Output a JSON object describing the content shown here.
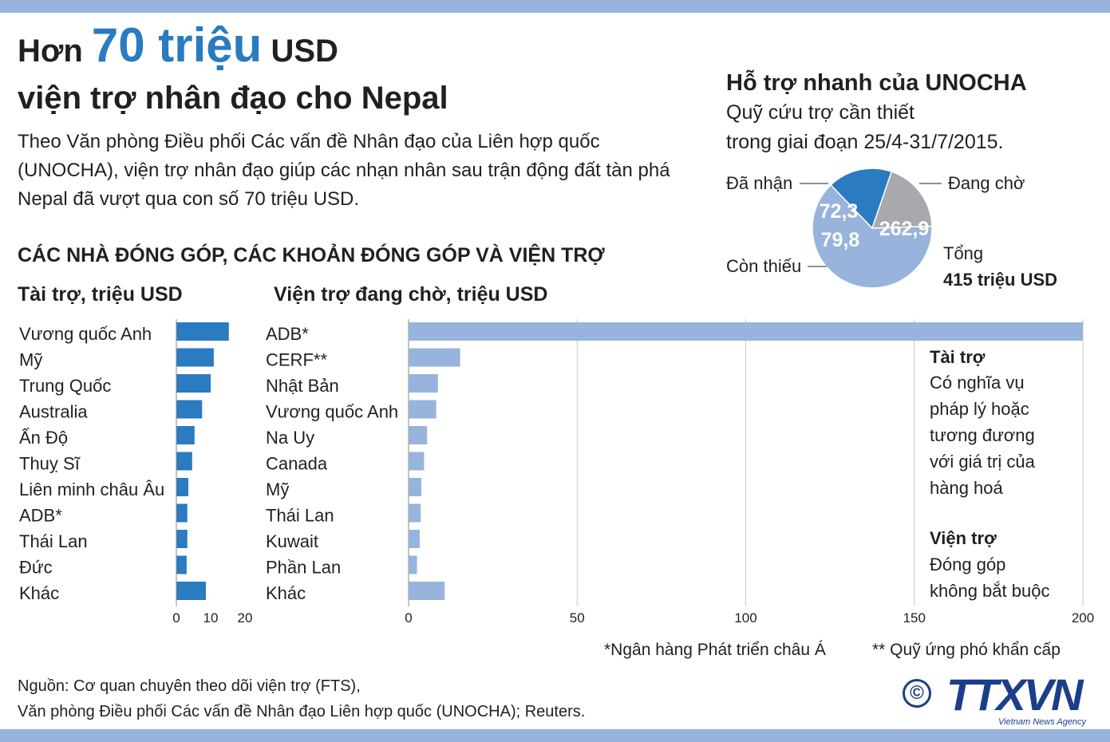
{
  "title": {
    "prefix": "Hơn",
    "highlight": "70 triệu",
    "suffix": "USD",
    "line2": "viện trợ nhân đạo cho Nepal"
  },
  "lede": "Theo Văn phòng Điều phối Các vấn đề Nhân đạo của Liên hợp quốc (UNOCHA),  viện trợ nhân đạo giúp các nhạn nhân sau trận động đất tàn phá Nepal đã vượt qua con số 70 triệu USD.",
  "section_title": "CÁC NHÀ ĐÓNG GÓP, CÁC KHOẢN ĐÓNG GÓP VÀ VIỆN TRỢ",
  "aside": {
    "funding_title": "Tài trợ",
    "funding_desc": [
      "Có nghĩa vụ",
      "pháp lý hoặc",
      "tương đương",
      "với  giá trị của",
      "hàng hoá"
    ],
    "aid_title": "Viện trợ",
    "aid_desc": [
      "Đóng góp",
      "không bắt buộc"
    ]
  },
  "notes": {
    "adb": "*Ngân hàng Phát triển châu Á",
    "cerf": "** Quỹ ứng phó khẩn cấp"
  },
  "source": {
    "line1": "Nguồn: Cơ quan chuyên theo dõi viện trợ (FTS),",
    "line2": "Văn phòng Điều phối Các vấn đề Nhân đạo Liên hợp quốc (UNOCHA); Reuters."
  },
  "logo": {
    "copyright": "©",
    "name": "TTXVN",
    "tagline": "Vietnam News Agency"
  },
  "colors": {
    "funding_bar": "#2a7bbf",
    "aid_bar": "#98b3dc",
    "shortfall": "#a7a9ac",
    "band": "#98b3dc",
    "gridline": "#c8c8c8"
  },
  "chart_data": [
    {
      "type": "bar",
      "orientation": "horizontal",
      "title": "Tài trợ, triệu USD",
      "categories": [
        "Vương quốc Anh",
        "Mỹ",
        "Trung Quốc",
        "Australia",
        "Ấn Độ",
        "Thuỵ Sĩ",
        "Liên minh châu Âu",
        "ADB*",
        "Thái Lan",
        "Đức",
        "Khác"
      ],
      "values": [
        15.3,
        10.9,
        10.0,
        7.5,
        5.3,
        4.6,
        3.5,
        3.2,
        3.2,
        3.0,
        8.6
      ],
      "xlim": [
        0,
        20
      ],
      "xticks": [
        0,
        10,
        20
      ],
      "color": "#2a7bbf"
    },
    {
      "type": "bar",
      "orientation": "horizontal",
      "title": "Viện trợ đang chờ, triệu USD",
      "categories": [
        "ADB*",
        "CERF**",
        "Nhật Bản",
        "Vương quốc Anh",
        "Na Uy",
        "Canada",
        "Mỹ",
        "Thái Lan",
        "Kuwait",
        "Phần Lan",
        "Khác"
      ],
      "values": [
        200,
        15.3,
        8.7,
        8.2,
        5.5,
        4.6,
        3.8,
        3.6,
        3.3,
        2.5,
        10.7
      ],
      "xlim": [
        0,
        200
      ],
      "xticks": [
        0,
        50,
        100,
        150,
        200
      ],
      "grid": true,
      "color": "#98b3dc"
    },
    {
      "type": "pie",
      "title": "Hỗ trợ nhanh của UNOCHA",
      "subtitle_lines": [
        "Quỹ cứu trợ cần thiết",
        "trong giai đoạn 25/4-31/7/2015."
      ],
      "slices": [
        {
          "label": "Đã nhận",
          "value": 72.3,
          "value_label": "72,3",
          "color": "#2a7bbf"
        },
        {
          "label": "Đang chờ",
          "value": 262.9,
          "value_label": "262,9",
          "color": "#98b3dc"
        },
        {
          "label": "Còn thiếu",
          "value": 79.8,
          "value_label": "79,8",
          "color": "#a7a9ac"
        }
      ],
      "total_label": "Tổng",
      "total_value": "415 triệu USD"
    }
  ]
}
